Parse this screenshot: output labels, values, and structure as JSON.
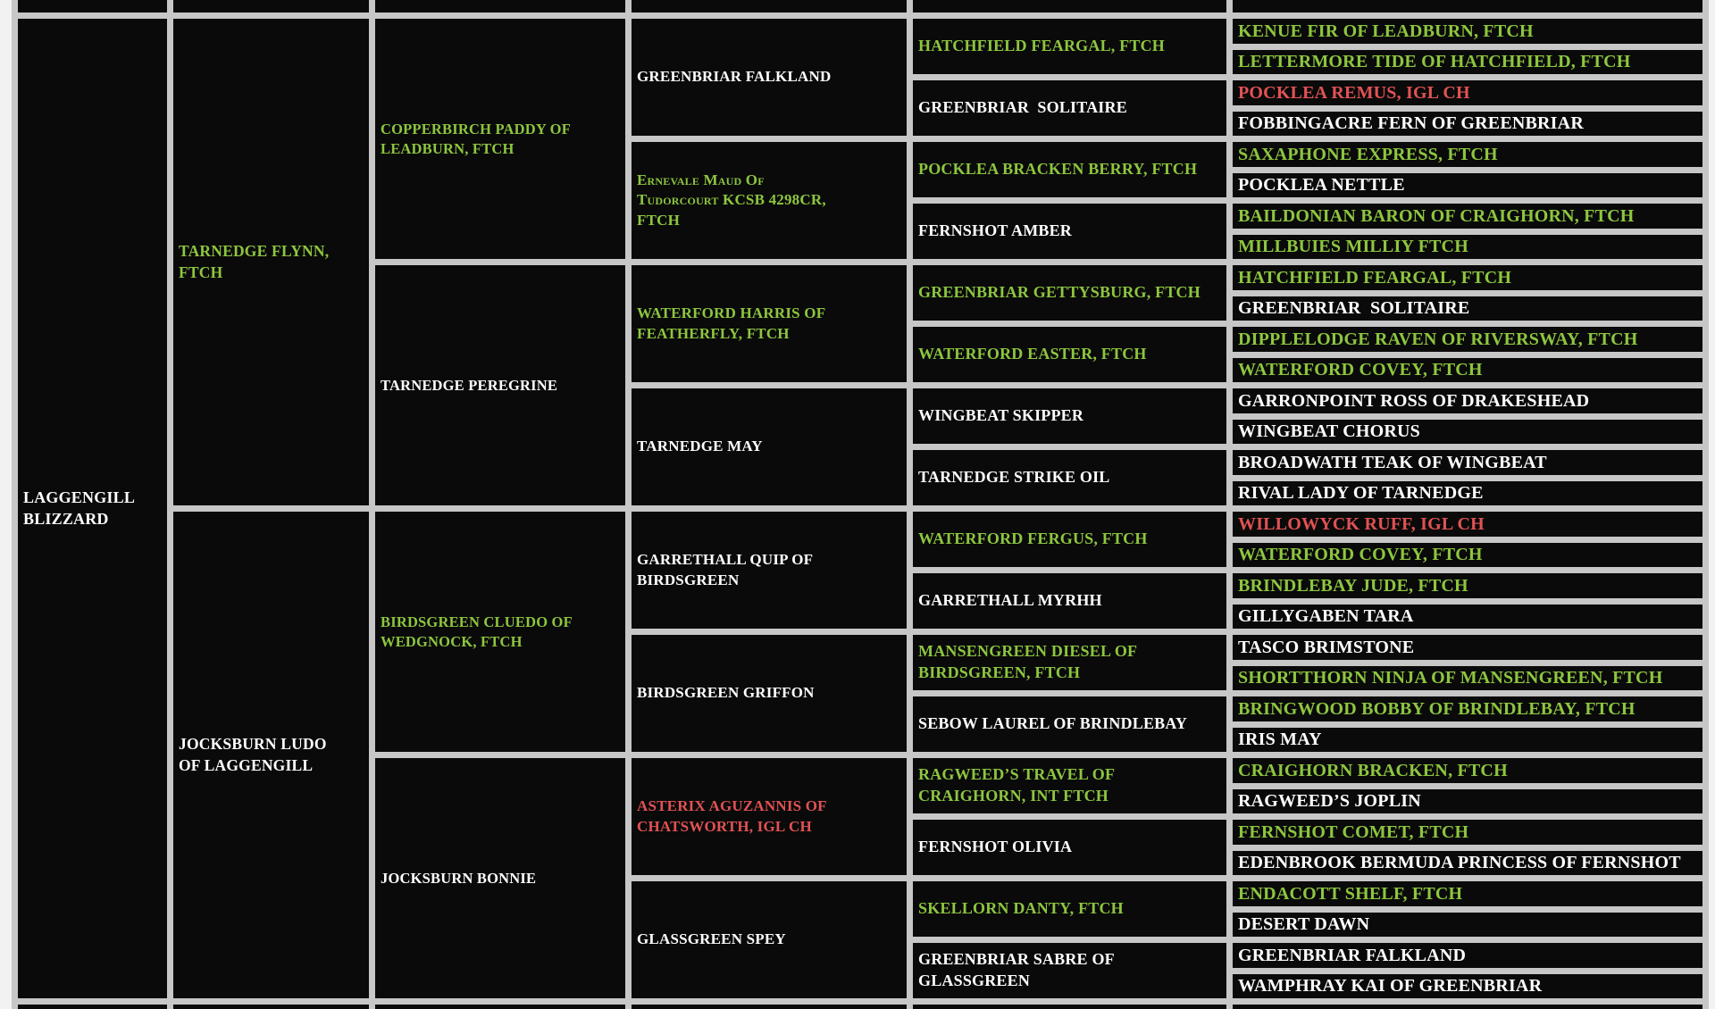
{
  "palette": {
    "green": "#8dc63f",
    "red": "#e15254",
    "white": "#ffffff",
    "cell_bg": "#0a0a0a",
    "grid_line": "#c7c7c7",
    "page_bg": "#f2f2f2"
  },
  "pedigree": {
    "subject": {
      "name": "LAGGENGILL\nBLIZZARD",
      "color": "white"
    },
    "gen1": [
      {
        "name": "TARNEDGE FLYNN,\nFTCH",
        "color": "green"
      },
      {
        "name": "JOCKSBURN LUDO\nOF LAGGENGILL",
        "color": "white"
      }
    ],
    "gen2": [
      {
        "name": "COPPERBIRCH PADDY OF\nLEADBURN, FTCH",
        "color": "green"
      },
      {
        "name": "TARNEDGE PEREGRINE",
        "color": "white"
      },
      {
        "name": "BIRDSGREEN CLUEDO OF\nWEDGNOCK, FTCH",
        "color": "green"
      },
      {
        "name": "JOCKSBURN BONNIE",
        "color": "white"
      }
    ],
    "gen3": [
      {
        "name": "GREENBRIAR FALKLAND",
        "color": "white"
      },
      {
        "name": "Ernevale Maud Of\nTudorcourt KCSB 4298CR,\nFTCH",
        "color": "green",
        "variant": "smallcaps"
      },
      {
        "name": "WATERFORD HARRIS OF\nFEATHERFLY, FTCH",
        "color": "green"
      },
      {
        "name": "TARNEDGE MAY",
        "color": "white"
      },
      {
        "name": "GARRETHALL QUIP OF\nBIRDSGREEN",
        "color": "white"
      },
      {
        "name": "BIRDSGREEN GRIFFON",
        "color": "white"
      },
      {
        "name": "ASTERIX AGUZANNIS OF\nCHATSWORTH, IGL CH",
        "color": "red"
      },
      {
        "name": "GLASSGREEN SPEY",
        "color": "white"
      }
    ],
    "gen4": [
      {
        "name": "HATCHFIELD FEARGAL, FTCH",
        "color": "green"
      },
      {
        "name": "GREENBRIAR  SOLITAIRE",
        "color": "white"
      },
      {
        "name": "POCKLEA BRACKEN BERRY, FTCH",
        "color": "green"
      },
      {
        "name": "FERNSHOT AMBER",
        "color": "white"
      },
      {
        "name": "GREENBRIAR GETTYSBURG, FTCH",
        "color": "green"
      },
      {
        "name": "WATERFORD EASTER, FTCH",
        "color": "green"
      },
      {
        "name": "WINGBEAT SKIPPER",
        "color": "white"
      },
      {
        "name": "TARNEDGE STRIKE OIL",
        "color": "white"
      },
      {
        "name": "WATERFORD FERGUS, FTCH",
        "color": "green"
      },
      {
        "name": "GARRETHALL MYRHH",
        "color": "white"
      },
      {
        "name": "MANSENGREEN DIESEL OF\nBIRDSGREEN, FTCH",
        "color": "green"
      },
      {
        "name": "SEBOW LAUREL OF BRINDLEBAY",
        "color": "white"
      },
      {
        "name": "RAGWEED’S TRAVEL OF\nCRAIGHORN, INT FTCH",
        "color": "green"
      },
      {
        "name": "FERNSHOT OLIVIA",
        "color": "white"
      },
      {
        "name": "SKELLORN DANTY, FTCH",
        "color": "green"
      },
      {
        "name": "GREENBRIAR SABRE OF\nGLASSGREEN",
        "color": "white"
      }
    ],
    "gen5": [
      {
        "name": "KENUE FIR OF LEADBURN, FTCH",
        "color": "green"
      },
      {
        "name": "LETTERMORE TIDE OF HATCHFIELD, FTCH",
        "color": "green"
      },
      {
        "name": "POCKLEA REMUS, IGL CH",
        "color": "red"
      },
      {
        "name": "FOBBINGACRE FERN OF GREENBRIAR",
        "color": "white"
      },
      {
        "name": "SAXAPHONE EXPRESS, FTCH",
        "color": "green"
      },
      {
        "name": "POCKLEA NETTLE",
        "color": "white"
      },
      {
        "name": "BAILDONIAN BARON OF CRAIGHORN, FTCH",
        "color": "green"
      },
      {
        "name": "MILLBUIES MILLIY FTCH",
        "color": "green"
      },
      {
        "name": "HATCHFIELD FEARGAL, FTCH",
        "color": "green"
      },
      {
        "name": "GREENBRIAR  SOLITAIRE",
        "color": "white"
      },
      {
        "name": "DIPPLELODGE RAVEN OF RIVERSWAY, FTCH",
        "color": "green"
      },
      {
        "name": "WATERFORD COVEY, FTCH",
        "color": "green"
      },
      {
        "name": "GARRONPOINT ROSS OF DRAKESHEAD",
        "color": "white"
      },
      {
        "name": "WINGBEAT CHORUS",
        "color": "white"
      },
      {
        "name": "BROADWATH TEAK OF WINGBEAT",
        "color": "white"
      },
      {
        "name": "RIVAL LADY OF TARNEDGE",
        "color": "white"
      },
      {
        "name": "WILLOWYCK RUFF, IGL CH",
        "color": "red"
      },
      {
        "name": "WATERFORD COVEY, FTCH",
        "color": "green"
      },
      {
        "name": "BRINDLEBAY JUDE, FTCH",
        "color": "green"
      },
      {
        "name": "GILLYGABEN TARA",
        "color": "white"
      },
      {
        "name": "TASCO BRIMSTONE",
        "color": "white"
      },
      {
        "name": "SHORTTHORN NINJA OF MANSENGREEN, FTCH",
        "color": "green"
      },
      {
        "name": "BRINGWOOD BOBBY OF BRINDLEBAY, FTCH",
        "color": "green"
      },
      {
        "name": "IRIS MAY",
        "color": "white"
      },
      {
        "name": "CRAIGHORN BRACKEN, FTCH",
        "color": "green"
      },
      {
        "name": "RAGWEED’S JOPLIN",
        "color": "white"
      },
      {
        "name": "FERNSHOT COMET, FTCH",
        "color": "green"
      },
      {
        "name": "EDENBROOK BERMUDA PRINCESS OF FERNSHOT",
        "color": "white"
      },
      {
        "name": "ENDACOTT SHELF, FTCH",
        "color": "green"
      },
      {
        "name": "DESERT DAWN",
        "color": "white"
      },
      {
        "name": "GREENBRIAR FALKLAND",
        "color": "white"
      },
      {
        "name": "WAMPHRAY KAI OF GREENBRIAR",
        "color": "white"
      }
    ]
  }
}
